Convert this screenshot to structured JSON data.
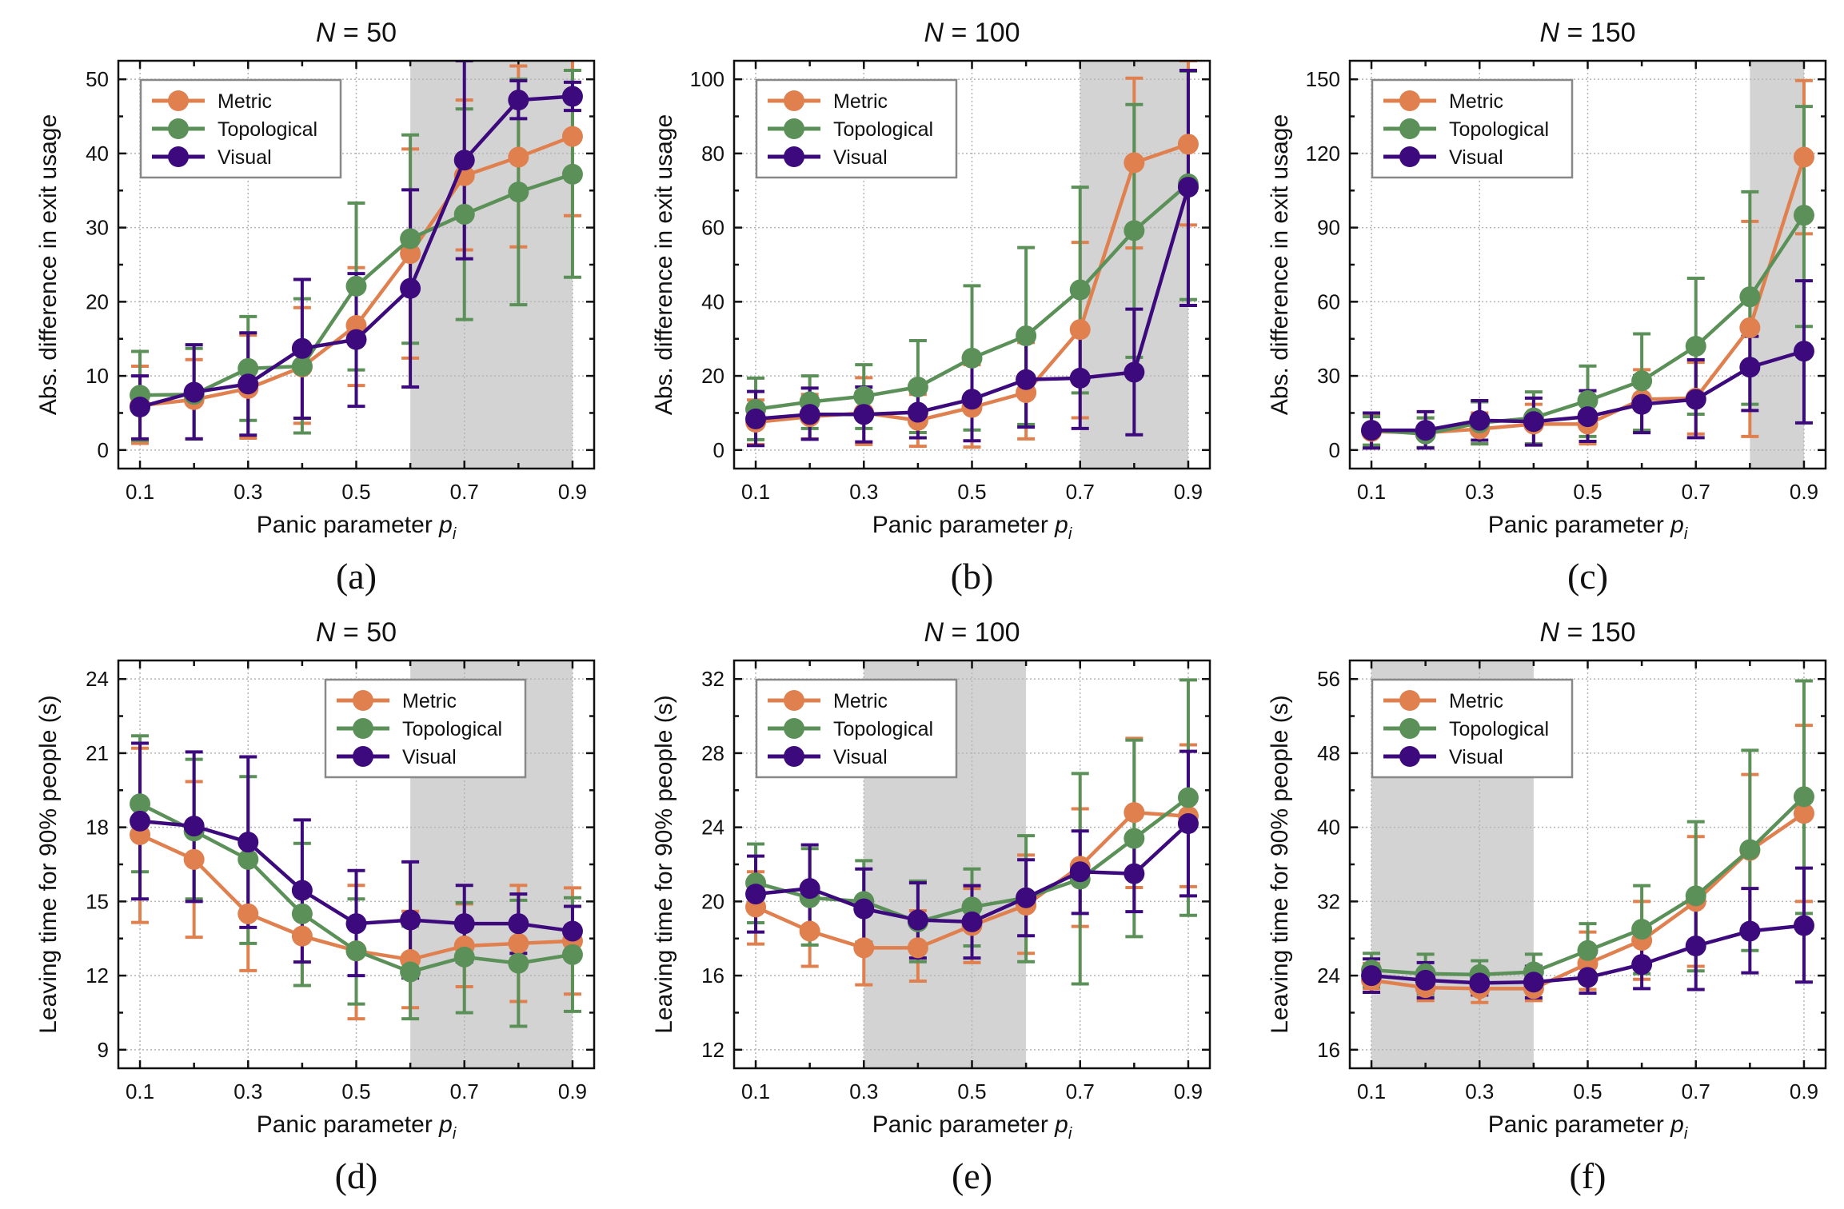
{
  "figure": {
    "series_colors": {
      "Metric": "#E0804F",
      "Topological": "#5B9158",
      "Visual": "#3C0A7D"
    },
    "shade_color": "#D3D3D3",
    "legend_labels": [
      "Metric",
      "Topological",
      "Visual"
    ]
  },
  "chart_data": [
    {
      "panel": "(a)",
      "type": "line",
      "title_var": "N",
      "title_value": "= 50",
      "xlabel": "Panic parameter ",
      "xlabel_var": "p",
      "xlabel_sub": "i",
      "ylabel": "Abs. difference in exit usage",
      "x": [
        0.1,
        0.2,
        0.3,
        0.4,
        0.5,
        0.6,
        0.7,
        0.8,
        0.9
      ],
      "xticks": [
        0.1,
        0.3,
        0.5,
        0.7,
        0.9
      ],
      "xlim": [
        0.06,
        0.94
      ],
      "ylim": [
        -2.5,
        52.5
      ],
      "yticks": [
        0,
        10,
        20,
        30,
        40,
        50
      ],
      "grid": true,
      "shaded_x": [
        0.6,
        0.9
      ],
      "legend": "top-left",
      "series": [
        {
          "name": "Metric",
          "values": [
            6.0,
            6.8,
            8.3,
            11.2,
            16.8,
            26.5,
            37.0,
            39.5,
            42.3
          ],
          "err_low": [
            0.9,
            1.5,
            1.6,
            3.6,
            8.7,
            12.4,
            27.0,
            27.4,
            31.6
          ],
          "err_high": [
            11.3,
            12.2,
            15.5,
            19.2,
            24.6,
            40.6,
            47.2,
            51.8,
            53.0
          ]
        },
        {
          "name": "Topological",
          "values": [
            7.4,
            7.5,
            11.0,
            11.3,
            22.1,
            28.5,
            31.8,
            34.8,
            37.2
          ],
          "err_low": [
            1.3,
            1.5,
            4.0,
            2.3,
            10.8,
            14.4,
            17.6,
            19.6,
            23.3
          ],
          "err_high": [
            13.3,
            13.7,
            18.0,
            20.4,
            33.3,
            42.5,
            46.0,
            50.0,
            51.2
          ]
        },
        {
          "name": "Visual",
          "values": [
            5.8,
            7.8,
            8.9,
            13.7,
            14.9,
            21.8,
            39.1,
            47.2,
            47.7
          ],
          "err_low": [
            1.5,
            1.5,
            2.0,
            4.3,
            5.9,
            8.5,
            25.8,
            44.7,
            45.8
          ],
          "err_high": [
            10.0,
            14.2,
            15.8,
            23.0,
            23.8,
            35.1,
            52.5,
            49.8,
            49.6
          ]
        }
      ]
    },
    {
      "panel": "(b)",
      "type": "line",
      "title_var": "N",
      "title_value": "= 100",
      "xlabel": "Panic parameter ",
      "xlabel_var": "p",
      "xlabel_sub": "i",
      "ylabel": "Abs. difference in exit usage",
      "x": [
        0.1,
        0.2,
        0.3,
        0.4,
        0.5,
        0.6,
        0.7,
        0.8,
        0.9
      ],
      "xticks": [
        0.1,
        0.3,
        0.5,
        0.7,
        0.9
      ],
      "xlim": [
        0.06,
        0.94
      ],
      "ylim": [
        -5,
        105
      ],
      "yticks": [
        0,
        20,
        40,
        60,
        80,
        100
      ],
      "grid": true,
      "shaded_x": [
        0.7,
        0.9
      ],
      "legend": "top-left",
      "series": [
        {
          "name": "Metric",
          "values": [
            7.5,
            9.0,
            10.0,
            8.0,
            11.5,
            15.5,
            32.5,
            77.5,
            82.5
          ],
          "err_low": [
            1.5,
            3.0,
            1.5,
            1.0,
            0.8,
            3.0,
            8.7,
            54.5,
            60.7
          ],
          "err_high": [
            13.5,
            15.0,
            19.5,
            15.0,
            23.0,
            29.0,
            56.0,
            100.3,
            105.0
          ]
        },
        {
          "name": "Topological",
          "values": [
            11.0,
            13.0,
            14.5,
            17.0,
            24.8,
            30.8,
            43.2,
            59.2,
            71.8
          ],
          "err_low": [
            2.8,
            5.8,
            5.8,
            4.7,
            5.4,
            6.9,
            15.4,
            25.0,
            40.6
          ],
          "err_high": [
            19.4,
            20.0,
            23.0,
            29.5,
            44.3,
            54.6,
            70.9,
            93.2,
            102.2
          ]
        },
        {
          "name": "Visual",
          "values": [
            8.4,
            9.6,
            9.6,
            10.2,
            13.7,
            19.0,
            19.4,
            21.0,
            70.9
          ],
          "err_low": [
            1.2,
            2.9,
            2.2,
            3.3,
            2.5,
            6.2,
            5.8,
            4.1,
            39.0
          ],
          "err_high": [
            15.8,
            16.7,
            17.0,
            17.0,
            25.0,
            31.0,
            33.0,
            38.0,
            102.4
          ]
        }
      ]
    },
    {
      "panel": "(c)",
      "type": "line",
      "title_var": "N",
      "title_value": "= 150",
      "xlabel": "Panic parameter ",
      "xlabel_var": "p",
      "xlabel_sub": "i",
      "ylabel": "Abs. difference in exit usage",
      "x": [
        0.1,
        0.2,
        0.3,
        0.4,
        0.5,
        0.6,
        0.7,
        0.8,
        0.9
      ],
      "xticks": [
        0.1,
        0.3,
        0.5,
        0.7,
        0.9
      ],
      "xlim": [
        0.06,
        0.94
      ],
      "ylim": [
        -7.5,
        157.5
      ],
      "yticks": [
        0,
        30,
        60,
        90,
        120,
        150
      ],
      "grid": true,
      "shaded_x": [
        0.8,
        0.9
      ],
      "legend": "top-left",
      "series": [
        {
          "name": "Metric",
          "values": [
            7.5,
            7.0,
            8.5,
            10.5,
            10.5,
            20.5,
            21.0,
            49.5,
            118.5
          ],
          "err_low": [
            1.5,
            1.0,
            2.5,
            2.5,
            2.5,
            8.0,
            6.5,
            5.5,
            87.5
          ],
          "err_high": [
            14.0,
            13.0,
            15.0,
            18.5,
            20.5,
            32.5,
            35.5,
            92.5,
            149.5
          ]
        },
        {
          "name": "Topological",
          "values": [
            8.0,
            6.5,
            11.0,
            13.0,
            20.0,
            28.0,
            42.0,
            62.0,
            95.0
          ],
          "err_low": [
            2.0,
            1.0,
            2.5,
            2.5,
            5.5,
            8.0,
            14.5,
            18.5,
            50.0
          ],
          "err_high": [
            13.5,
            13.0,
            19.5,
            23.5,
            34.0,
            47.0,
            69.5,
            104.5,
            139.0
          ]
        },
        {
          "name": "Visual",
          "values": [
            8.0,
            8.0,
            12.0,
            11.5,
            13.5,
            18.5,
            20.5,
            33.5,
            40.0
          ],
          "err_low": [
            0.8,
            0.8,
            4.0,
            2.0,
            3.5,
            7.0,
            5.0,
            16.0,
            11.0
          ],
          "err_high": [
            15.0,
            15.5,
            20.0,
            21.0,
            24.0,
            30.0,
            36.5,
            46.0,
            68.5
          ]
        }
      ]
    },
    {
      "panel": "(d)",
      "type": "line",
      "title_var": "N",
      "title_value": "= 50",
      "xlabel": "Panic parameter ",
      "xlabel_var": "p",
      "xlabel_sub": "i",
      "ylabel": "Leaving time for 90% people (s)",
      "x": [
        0.1,
        0.2,
        0.3,
        0.4,
        0.5,
        0.6,
        0.7,
        0.8,
        0.9
      ],
      "xticks": [
        0.1,
        0.3,
        0.5,
        0.7,
        0.9
      ],
      "xlim": [
        0.06,
        0.94
      ],
      "ylim": [
        8.25,
        24.75
      ],
      "yticks": [
        9,
        12,
        15,
        18,
        21,
        24
      ],
      "grid": true,
      "shaded_x": [
        0.6,
        0.9
      ],
      "legend": "top-right",
      "series": [
        {
          "name": "Metric",
          "values": [
            17.7,
            16.7,
            14.5,
            13.6,
            13.0,
            12.65,
            13.2,
            13.3,
            13.4
          ],
          "err_low": [
            14.15,
            13.55,
            12.2,
            11.6,
            10.25,
            10.7,
            11.55,
            10.95,
            11.25
          ],
          "err_high": [
            21.2,
            19.85,
            16.9,
            15.6,
            15.65,
            14.6,
            14.9,
            15.65,
            15.55
          ]
        },
        {
          "name": "Topological",
          "values": [
            18.95,
            17.85,
            16.7,
            14.5,
            13.0,
            12.15,
            12.75,
            12.5,
            12.85
          ],
          "err_low": [
            16.2,
            15.1,
            13.3,
            11.6,
            10.85,
            10.25,
            10.5,
            9.95,
            10.55
          ],
          "err_high": [
            21.7,
            20.75,
            20.05,
            17.35,
            15.1,
            14.0,
            14.95,
            15.05,
            15.15
          ]
        },
        {
          "name": "Visual",
          "values": [
            18.25,
            18.05,
            17.4,
            15.45,
            14.1,
            14.25,
            14.1,
            14.1,
            13.8
          ],
          "err_low": [
            15.1,
            15.0,
            13.95,
            12.55,
            12.0,
            11.9,
            12.55,
            12.9,
            12.75
          ],
          "err_high": [
            21.4,
            21.05,
            20.85,
            18.3,
            16.25,
            16.6,
            15.65,
            15.3,
            14.8
          ]
        }
      ]
    },
    {
      "panel": "(e)",
      "type": "line",
      "title_var": "N",
      "title_value": "= 100",
      "xlabel": "Panic parameter ",
      "xlabel_var": "p",
      "xlabel_sub": "i",
      "ylabel": "Leaving time for 90% people (s)",
      "x": [
        0.1,
        0.2,
        0.3,
        0.4,
        0.5,
        0.6,
        0.7,
        0.8,
        0.9
      ],
      "xticks": [
        0.1,
        0.3,
        0.5,
        0.7,
        0.9
      ],
      "xlim": [
        0.06,
        0.94
      ],
      "ylim": [
        11.0,
        33.0
      ],
      "yticks": [
        12,
        16,
        20,
        24,
        28,
        32
      ],
      "grid": true,
      "shaded_x": [
        0.3,
        0.6
      ],
      "legend": "top-left",
      "series": [
        {
          "name": "Metric",
          "values": [
            19.7,
            18.4,
            17.5,
            17.5,
            18.7,
            19.8,
            21.9,
            24.8,
            24.6
          ],
          "err_low": [
            17.7,
            16.5,
            15.5,
            15.7,
            16.7,
            17.2,
            18.65,
            20.75,
            20.8
          ],
          "err_high": [
            21.6,
            20.3,
            19.5,
            19.5,
            20.7,
            22.5,
            25.0,
            28.8,
            28.45
          ]
        },
        {
          "name": "Topological",
          "values": [
            21.0,
            20.2,
            20.0,
            18.9,
            19.7,
            20.2,
            21.2,
            23.4,
            25.6
          ],
          "err_low": [
            18.85,
            17.65,
            17.8,
            16.75,
            17.6,
            16.75,
            15.55,
            18.1,
            19.25
          ],
          "err_high": [
            23.1,
            22.85,
            22.2,
            21.1,
            21.75,
            23.55,
            26.9,
            28.7,
            31.95
          ]
        },
        {
          "name": "Visual",
          "values": [
            20.4,
            20.7,
            19.6,
            19.0,
            18.9,
            20.2,
            21.6,
            21.5,
            24.2
          ],
          "err_low": [
            18.35,
            18.35,
            17.55,
            16.95,
            16.95,
            18.15,
            19.35,
            19.45,
            20.3
          ],
          "err_high": [
            22.45,
            23.05,
            21.75,
            21.0,
            20.85,
            22.25,
            23.8,
            23.55,
            28.1
          ]
        }
      ]
    },
    {
      "panel": "(f)",
      "type": "line",
      "title_var": "N",
      "title_value": "= 150",
      "xlabel": "Panic parameter ",
      "xlabel_var": "p",
      "xlabel_sub": "i",
      "ylabel": "Leaving time for 90% people (s)",
      "x": [
        0.1,
        0.2,
        0.3,
        0.4,
        0.5,
        0.6,
        0.7,
        0.8,
        0.9
      ],
      "xticks": [
        0.1,
        0.3,
        0.5,
        0.7,
        0.9
      ],
      "xlim": [
        0.06,
        0.94
      ],
      "ylim": [
        14.0,
        58.0
      ],
      "yticks": [
        16,
        24,
        32,
        40,
        48,
        56
      ],
      "grid": true,
      "shaded_x": [
        0.1,
        0.4
      ],
      "legend": "top-left",
      "series": [
        {
          "name": "Metric",
          "values": [
            23.5,
            22.7,
            22.6,
            22.6,
            25.3,
            27.8,
            32.0,
            37.5,
            41.5
          ],
          "err_low": [
            22.6,
            21.3,
            21.1,
            21.3,
            22.5,
            23.6,
            25.0,
            29.3,
            32.0
          ],
          "err_high": [
            25.3,
            24.3,
            24.4,
            24.6,
            28.7,
            32.0,
            39.0,
            45.7,
            51.0
          ]
        },
        {
          "name": "Topological",
          "values": [
            24.6,
            24.2,
            24.1,
            24.4,
            26.7,
            29.0,
            32.6,
            37.6,
            43.3
          ],
          "err_low": [
            22.8,
            22.0,
            22.4,
            22.6,
            23.5,
            24.2,
            24.5,
            26.7,
            30.7
          ],
          "err_high": [
            26.4,
            26.3,
            25.6,
            26.3,
            29.6,
            33.7,
            40.6,
            48.3,
            55.8
          ]
        },
        {
          "name": "Visual",
          "values": [
            24.0,
            23.5,
            23.2,
            23.3,
            23.8,
            25.2,
            27.2,
            28.8,
            29.4
          ],
          "err_low": [
            22.2,
            21.6,
            21.9,
            21.6,
            22.1,
            22.6,
            22.5,
            24.3,
            23.3
          ],
          "err_high": [
            25.8,
            25.4,
            24.5,
            25.0,
            25.5,
            27.8,
            31.9,
            33.4,
            35.6
          ]
        }
      ]
    }
  ]
}
